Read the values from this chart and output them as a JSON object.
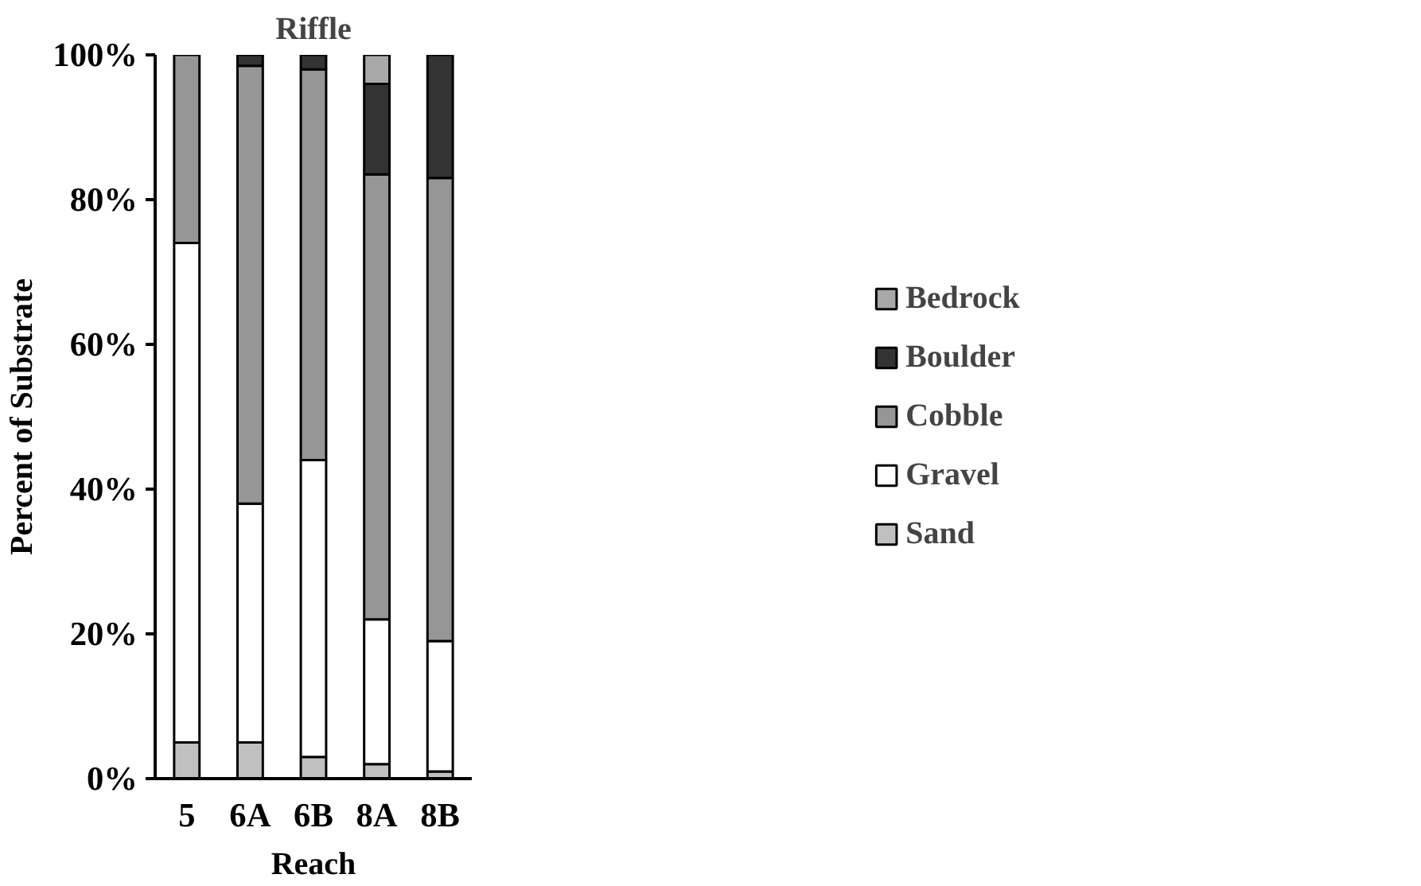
{
  "chart_data": {
    "type": "bar",
    "stacked": true,
    "title": "Riffle",
    "xlabel": "Reach",
    "ylabel": "Percent of Substrate",
    "categories": [
      "5",
      "6A",
      "6B",
      "8A",
      "8B"
    ],
    "series": [
      {
        "name": "Sand",
        "color": "#c0c0c0",
        "values": [
          5,
          5,
          3,
          2,
          1
        ]
      },
      {
        "name": "Gravel",
        "color": "#ffffff",
        "values": [
          69,
          33,
          41,
          20,
          18
        ]
      },
      {
        "name": "Cobble",
        "color": "#969696",
        "values": [
          26,
          60.5,
          54,
          61.5,
          64
        ]
      },
      {
        "name": "Boulder",
        "color": "#333333",
        "values": [
          null,
          1.5,
          2,
          12.5,
          17
        ]
      },
      {
        "name": "Bedrock",
        "color": "#a8a8a8",
        "values": [
          null,
          null,
          null,
          4,
          null
        ]
      }
    ],
    "ylim": [
      0,
      100
    ],
    "yticks": [
      {
        "value": 0,
        "label": "0%"
      },
      {
        "value": 20,
        "label": "20%"
      },
      {
        "value": 40,
        "label": "40%"
      },
      {
        "value": 60,
        "label": "60%"
      },
      {
        "value": 80,
        "label": "80%"
      },
      {
        "value": 100,
        "label": "100%"
      }
    ],
    "grid": false,
    "legend": "right"
  }
}
